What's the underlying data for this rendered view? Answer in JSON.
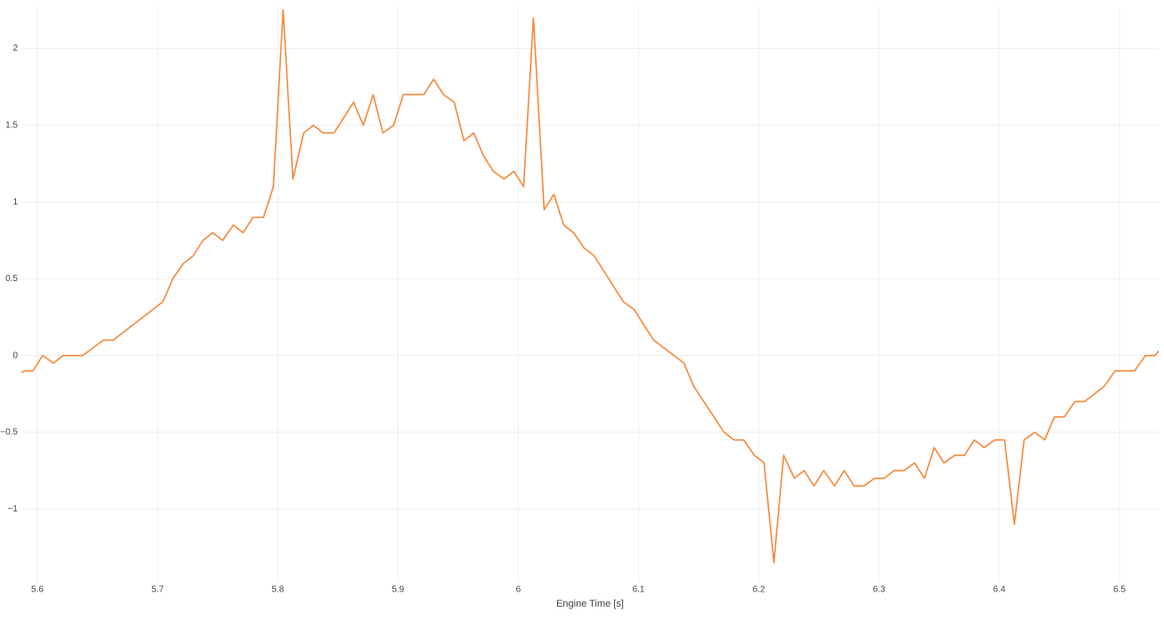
{
  "chart_data": {
    "type": "line",
    "x_label": "Engine Time [s]",
    "x": [
      5.5867,
      5.5896,
      5.5963,
      5.6044,
      5.6133,
      5.6215,
      5.6378,
      5.6548,
      5.663,
      5.7044,
      5.7126,
      5.7215,
      5.7296,
      5.7378,
      5.7459,
      5.7541,
      5.763,
      5.7711,
      5.7793,
      5.7881,
      5.7963,
      5.8044,
      5.8126,
      5.8215,
      5.8296,
      5.8378,
      5.8467,
      5.863,
      5.8711,
      5.8793,
      5.8874,
      5.8963,
      5.9044,
      5.9215,
      5.9296,
      5.9378,
      5.9467,
      5.9548,
      5.963,
      5.9711,
      5.9793,
      5.9881,
      5.9963,
      6.0044,
      6.0126,
      6.0215,
      6.0296,
      6.0378,
      6.0459,
      6.0548,
      6.063,
      6.0874,
      6.0963,
      6.1126,
      6.1378,
      6.1459,
      6.1711,
      6.1793,
      6.1874,
      6.1963,
      6.2044,
      6.2126,
      6.2207,
      6.2296,
      6.2378,
      6.2459,
      6.2541,
      6.263,
      6.2711,
      6.2793,
      6.2874,
      6.2963,
      6.3044,
      6.3126,
      6.3207,
      6.3296,
      6.3378,
      6.3459,
      6.3541,
      6.363,
      6.3711,
      6.3793,
      6.3874,
      6.3963,
      6.4044,
      6.4126,
      6.4207,
      6.4296,
      6.4378,
      6.4459,
      6.4541,
      6.463,
      6.4711,
      6.4874,
      6.4963,
      6.5126,
      6.5215,
      6.5296,
      6.5326
    ],
    "series": [
      {
        "color": "#f5883a",
        "values": [
          -0.11,
          -0.1,
          -0.1,
          0,
          -0.05,
          0,
          0,
          0.1,
          0.1,
          0.35,
          0.5,
          0.6,
          0.65,
          0.75,
          0.8,
          0.75,
          0.85,
          0.8,
          0.9,
          0.9,
          1.1,
          2.25,
          1.15,
          1.45,
          1.5,
          1.45,
          1.45,
          1.65,
          1.5,
          1.7,
          1.45,
          1.5,
          1.7,
          1.7,
          1.8,
          1.7,
          1.65,
          1.4,
          1.45,
          1.3,
          1.2,
          1.15,
          1.2,
          1.1,
          2.2,
          0.95,
          1.05,
          0.85,
          0.8,
          0.7,
          0.65,
          0.35,
          0.3,
          0.1,
          -0.05,
          -0.2,
          -0.5,
          -0.55,
          -0.55,
          -0.65,
          -0.7,
          -1.35,
          -0.65,
          -0.8,
          -0.75,
          -0.85,
          -0.75,
          -0.85,
          -0.75,
          -0.85,
          -0.85,
          -0.8,
          -0.8,
          -0.75,
          -0.75,
          -0.7,
          -0.8,
          -0.6,
          -0.7,
          -0.65,
          -0.65,
          -0.55,
          -0.6,
          -0.55,
          -0.55,
          -1.1,
          -0.55,
          -0.5,
          -0.55,
          -0.4,
          -0.4,
          -0.3,
          -0.3,
          -0.2,
          -0.1,
          -0.1,
          0,
          0,
          0.03
        ]
      }
    ],
    "xlim": [
      5.5867,
      6.5326
    ],
    "xticks": [
      5.6,
      5.7,
      5.8,
      5.9,
      6,
      6.1,
      6.2,
      6.3,
      6.4,
      6.5
    ],
    "ylim": [
      -1.48,
      2.27
    ],
    "yticks": [
      {
        "value": -1,
        "label": "−1"
      },
      {
        "value": -0.5,
        "label": "−0.5"
      },
      0,
      0.5,
      1,
      1.5,
      2
    ],
    "grid": true
  }
}
